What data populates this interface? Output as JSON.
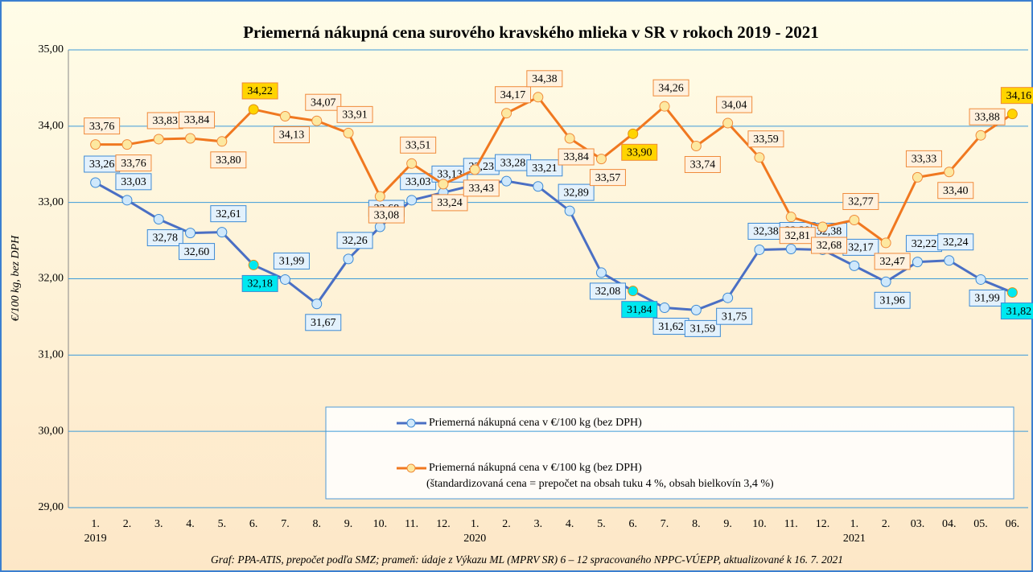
{
  "chart_data": {
    "type": "line",
    "title": "Priemerná nákupná cena surového kravského mlieka v SR v rokoch 2019 - 2021",
    "y_label": "€/100 kg, bez DPH",
    "source": "Graf: PPA-ATIS, prepočet podľa SMZ; prameň: údaje z Výkazu ML (MPRV SR) 6 – 12 spracovaného NPPC-VÚEPP, aktualizované k 16. 7. 2021",
    "categories": [
      "1.",
      "2.",
      "3.",
      "4.",
      "5.",
      "6.",
      "7.",
      "8.",
      "9.",
      "10.",
      "11.",
      "12.",
      "1.",
      "2.",
      "3.",
      "4.",
      "5.",
      "6.",
      "7.",
      "8.",
      "9.",
      "10.",
      "11.",
      "12.",
      "1.",
      "2.",
      "03.",
      "04.",
      "05.",
      "06."
    ],
    "x_groups": [
      {
        "label": "2019",
        "start": 0
      },
      {
        "label": "2020",
        "start": 12
      },
      {
        "label": "2021",
        "start": 24
      }
    ],
    "ylim": [
      29,
      35
    ],
    "yticks": [
      {
        "value": 29,
        "label": "29,00"
      },
      {
        "value": 30,
        "label": "30,00"
      },
      {
        "value": 31,
        "label": "31,00"
      },
      {
        "value": 32,
        "label": "32,00"
      },
      {
        "value": 33,
        "label": "33,00"
      },
      {
        "value": 34,
        "label": "34,00"
      },
      {
        "value": 35,
        "label": "35,00"
      }
    ],
    "grid": true,
    "series": [
      {
        "name": "Priemerná nákupná cena v €/100 kg (bez DPH)",
        "color": "#4a6fc4",
        "marker_color": "#cfe8fb",
        "label_fill": "#e3f1fc",
        "label_stroke": "#3d8ad4",
        "highlight_color": "#00e8f0",
        "highlights": [
          5,
          17,
          29
        ],
        "values": [
          33.26,
          33.03,
          32.78,
          32.6,
          32.61,
          32.18,
          31.99,
          31.67,
          32.26,
          32.68,
          33.03,
          33.13,
          33.23,
          33.28,
          33.21,
          32.89,
          32.08,
          31.84,
          31.62,
          31.59,
          31.75,
          32.38,
          32.39,
          32.38,
          32.17,
          31.96,
          32.22,
          32.24,
          31.99,
          31.82
        ],
        "value_labels": [
          "33,26",
          "33,03",
          "32,78",
          "32,60",
          "32,61",
          "32,18",
          "31,99",
          "31,67",
          "32,26",
          "32,68",
          "33,03",
          "33,13",
          "33,23",
          "33,28",
          "33,21",
          "32,89",
          "32,08",
          "31,84",
          "31,62",
          "31,59",
          "31,75",
          "32,38",
          "32,39",
          "32,38",
          "32,17",
          "31,96",
          "32,22",
          "32,24",
          "31,99",
          "31,82"
        ]
      },
      {
        "name": "Priemerná nákupná cena v €/100 kg (bez DPH)",
        "note": "(štandardizovaná cena = prepočet na obsah tuku 4 %, obsah bielkovín 3,4 %)",
        "color": "#f07820",
        "marker_color": "#fde8a0",
        "label_fill": "#fff1de",
        "label_stroke": "#f08a3a",
        "highlight_color": "#ffd400",
        "highlights": [
          5,
          17,
          29
        ],
        "values": [
          33.76,
          33.76,
          33.83,
          33.84,
          33.8,
          34.22,
          34.13,
          34.07,
          33.91,
          33.08,
          33.51,
          33.24,
          33.43,
          34.17,
          34.38,
          33.84,
          33.57,
          33.9,
          34.26,
          33.74,
          34.04,
          33.59,
          32.81,
          32.68,
          32.77,
          32.47,
          33.33,
          33.4,
          33.88,
          34.16
        ],
        "value_labels": [
          "33,76",
          "33,76",
          "33,83",
          "33,84",
          "33,80",
          "34,22",
          "34,13",
          "34,07",
          "33,91",
          "33,08",
          "33,51",
          "33,24",
          "33,43",
          "34,17",
          "34,38",
          "33,84",
          "33,57",
          "33,90",
          "34,26",
          "33,74",
          "34,04",
          "33,59",
          "32,81",
          "32,68",
          "32,77",
          "32,47",
          "33,33",
          "33,40",
          "33,88",
          "34,16"
        ]
      }
    ]
  }
}
